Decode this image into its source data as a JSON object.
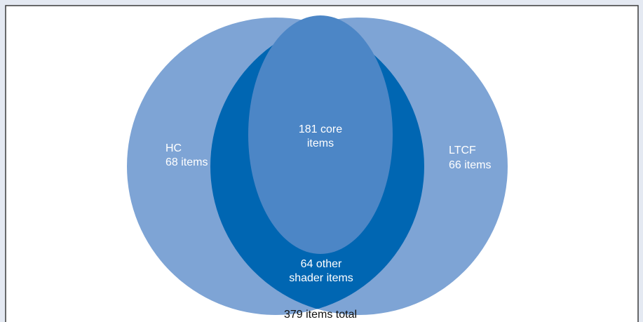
{
  "diagram": {
    "left_set": {
      "name": "HC",
      "count": "68 items"
    },
    "right_set": {
      "name": "LTCF",
      "count": "66 items"
    },
    "core": {
      "line1": "181 core",
      "line2": "items"
    },
    "shared": {
      "line1": "64 other",
      "line2": "shader items"
    },
    "total": "379 items total"
  }
}
